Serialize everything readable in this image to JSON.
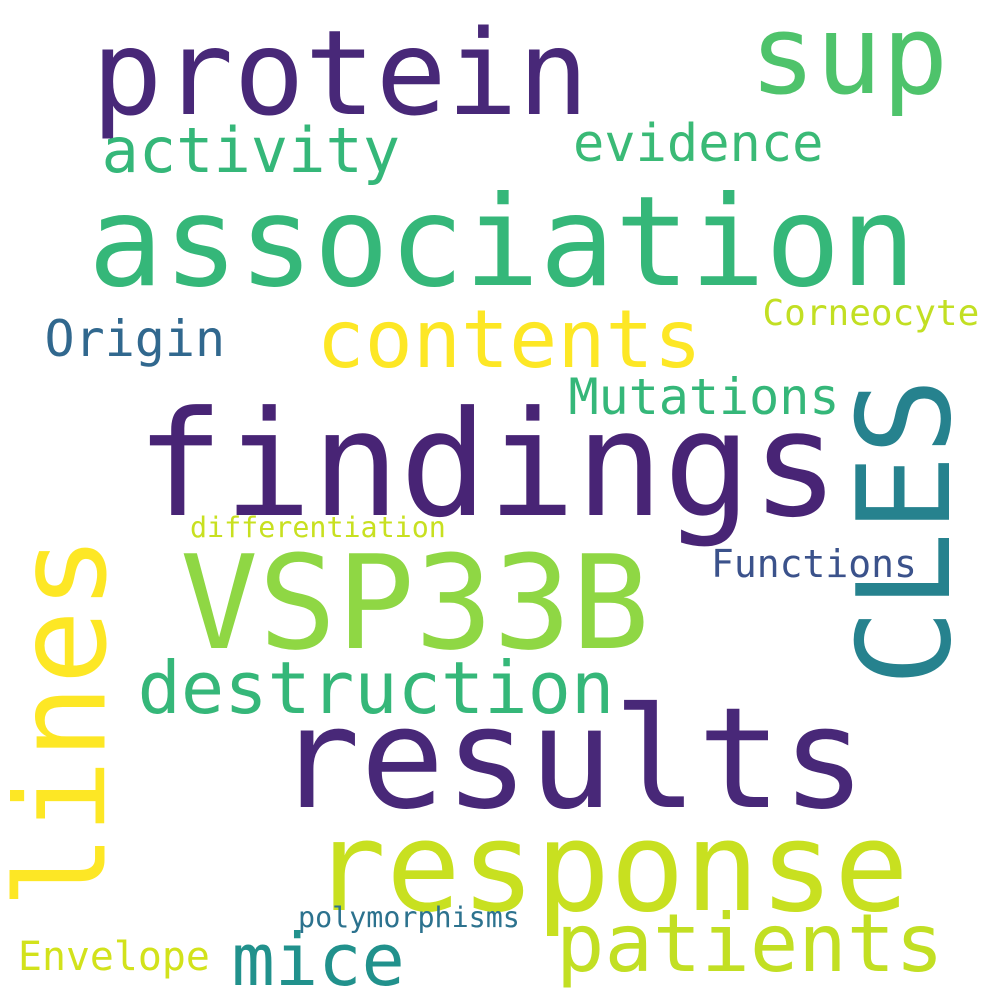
{
  "words": {
    "protein": {
      "text": "protein",
      "color": "#482878"
    },
    "sup": {
      "text": "sup",
      "color": "#4ec36b"
    },
    "activity": {
      "text": "activity",
      "color": "#35b779"
    },
    "evidence": {
      "text": "evidence",
      "color": "#3aba76"
    },
    "association": {
      "text": "association",
      "color": "#35b779"
    },
    "contents": {
      "text": "contents",
      "color": "#fde725"
    },
    "origin": {
      "text": "Origin",
      "color": "#31688e"
    },
    "corneocyte": {
      "text": "Corneocyte",
      "color": "#c2df23"
    },
    "mutations": {
      "text": "Mutations",
      "color": "#35b779"
    },
    "findings": {
      "text": "findings",
      "color": "#482475"
    },
    "cles": {
      "text": "CLES",
      "color": "#26828e"
    },
    "lines": {
      "text": "lines",
      "color": "#fde725"
    },
    "differentiation": {
      "text": "differentiation",
      "color": "#c8e020"
    },
    "vsp33b": {
      "text": "VSP33B",
      "color": "#8fd744"
    },
    "functions": {
      "text": "Functions",
      "color": "#3b528b"
    },
    "destruction": {
      "text": "destruction",
      "color": "#35b779"
    },
    "results": {
      "text": "results",
      "color": "#482878"
    },
    "response": {
      "text": "response",
      "color": "#c8e020"
    },
    "polymorphisms": {
      "text": "polymorphisms",
      "color": "#2c728e"
    },
    "patients": {
      "text": "patients",
      "color": "#c2df23"
    },
    "envelope": {
      "text": "Envelope",
      "color": "#d2e21b"
    },
    "mice": {
      "text": "mice",
      "color": "#21918c"
    }
  }
}
